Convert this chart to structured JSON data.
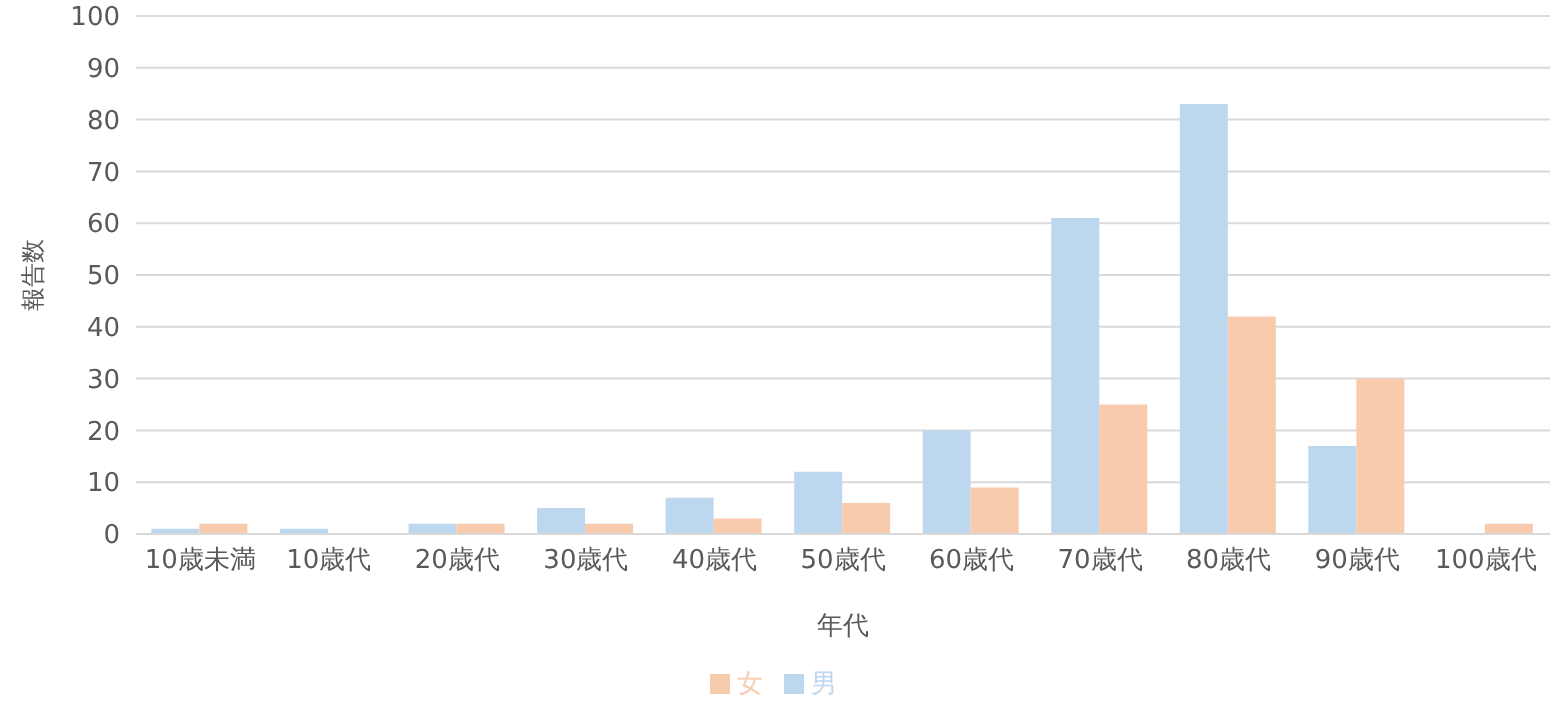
{
  "chart_data": {
    "type": "bar",
    "xlabel": "年代",
    "ylabel": "報告数",
    "categories": [
      "10歳未満",
      "10歳代",
      "20歳代",
      "30歳代",
      "40歳代",
      "50歳代",
      "60歳代",
      "70歳代",
      "80歳代",
      "90歳代",
      "100歳代"
    ],
    "series": [
      {
        "name": "男",
        "color": "#bdd7ee",
        "values": [
          1,
          1,
          2,
          5,
          7,
          12,
          20,
          61,
          83,
          17,
          0
        ]
      },
      {
        "name": "女",
        "color": "#f8cbad",
        "values": [
          2,
          0,
          2,
          2,
          3,
          6,
          9,
          25,
          42,
          30,
          2
        ]
      }
    ],
    "ylim": [
      0,
      100
    ],
    "yticks": [
      0,
      10,
      20,
      30,
      40,
      50,
      60,
      70,
      80,
      90,
      100
    ],
    "grid": "y",
    "legend": "bottom"
  }
}
